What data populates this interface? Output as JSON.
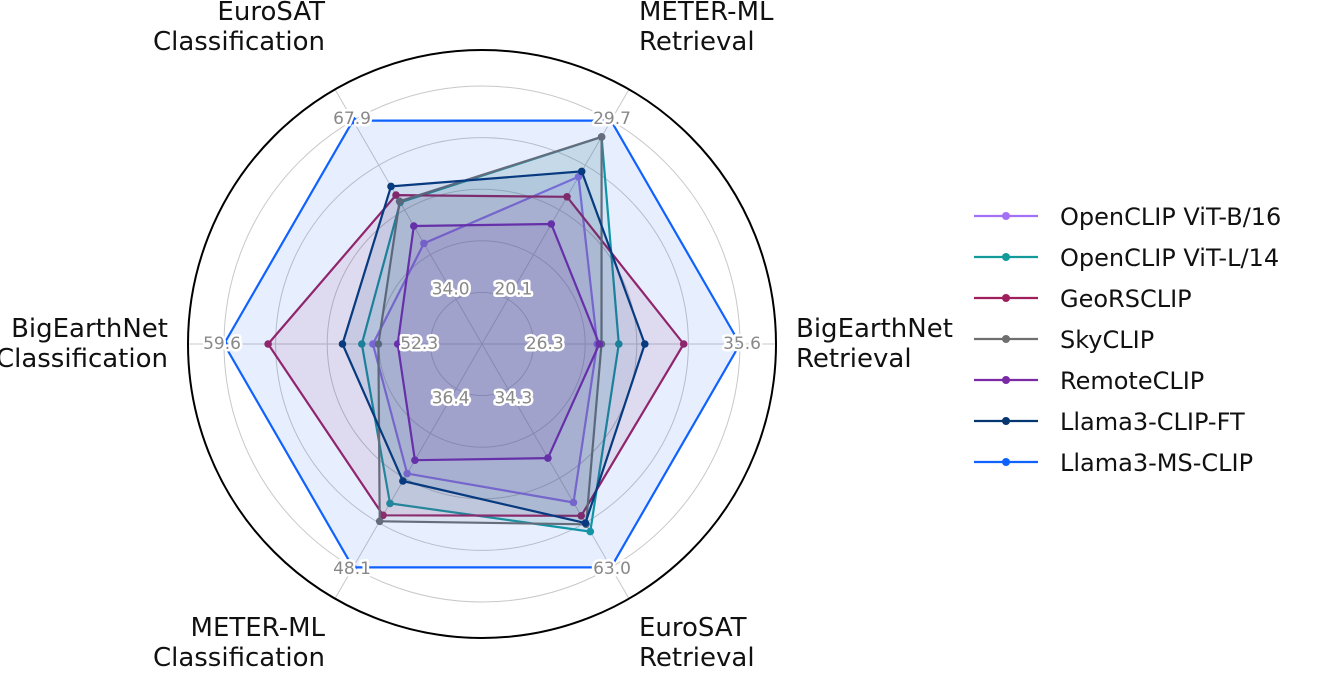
{
  "chart_data": {
    "type": "radar",
    "axes": [
      {
        "label_lines": [
          "BigEarthNet",
          "Retrieval"
        ],
        "min": 26.3,
        "max": 35.6,
        "min_label": "26.3",
        "max_label": "35.6"
      },
      {
        "label_lines": [
          "METER-ML",
          "Retrieval"
        ],
        "min": 20.1,
        "max": 29.7,
        "min_label": "20.1",
        "max_label": "29.7"
      },
      {
        "label_lines": [
          "EuroSAT",
          "Classification"
        ],
        "min": 34.0,
        "max": 67.9,
        "min_label": "34.0",
        "max_label": "67.9"
      },
      {
        "label_lines": [
          "BigEarthNet",
          "Classification"
        ],
        "min": 52.3,
        "max": 59.6,
        "min_label": "52.3",
        "max_label": "59.6"
      },
      {
        "label_lines": [
          "METER-ML",
          "Classification"
        ],
        "min": 36.4,
        "max": 48.1,
        "min_label": "36.4",
        "max_label": "48.1"
      },
      {
        "label_lines": [
          "EuroSAT",
          "Retrieval"
        ],
        "min": 34.3,
        "max": 63.0,
        "min_label": "34.3",
        "max_label": "63.0"
      }
    ],
    "series": [
      {
        "name": "OpenCLIP ViT-B/16",
        "color": "#a371f7",
        "values": [
          29.0,
          26.6,
          44.0,
          54.2,
          41.8,
          52.3
        ]
      },
      {
        "name": "OpenCLIP ViT-L/14",
        "color": "#139a9b",
        "values": [
          30.0,
          28.8,
          52.0,
          54.6,
          43.8,
          57.1
        ]
      },
      {
        "name": "GeoRSCLIP",
        "color": "#9e1f5c",
        "values": [
          33.0,
          25.5,
          53.4,
          58.0,
          44.6,
          54.5
        ]
      },
      {
        "name": "SkyCLIP",
        "color": "#6f6f6f",
        "values": [
          29.2,
          28.8,
          52.2,
          54.0,
          45.0,
          55.9
        ]
      },
      {
        "name": "RemoteCLIP",
        "color": "#7b2aa5",
        "values": [
          29.1,
          24.0,
          47.4,
          53.3,
          40.9,
          45.0
        ]
      },
      {
        "name": "Llama3-CLIP-FT",
        "color": "#063670",
        "values": [
          31.2,
          26.9,
          55.1,
          55.3,
          42.3,
          55.7
        ]
      },
      {
        "name": "Llama3-MS-CLIP",
        "color": "#0f62fe",
        "values": [
          35.6,
          29.7,
          67.9,
          59.6,
          48.1,
          63.0
        ]
      }
    ],
    "legend_position": "right",
    "grid": true
  }
}
